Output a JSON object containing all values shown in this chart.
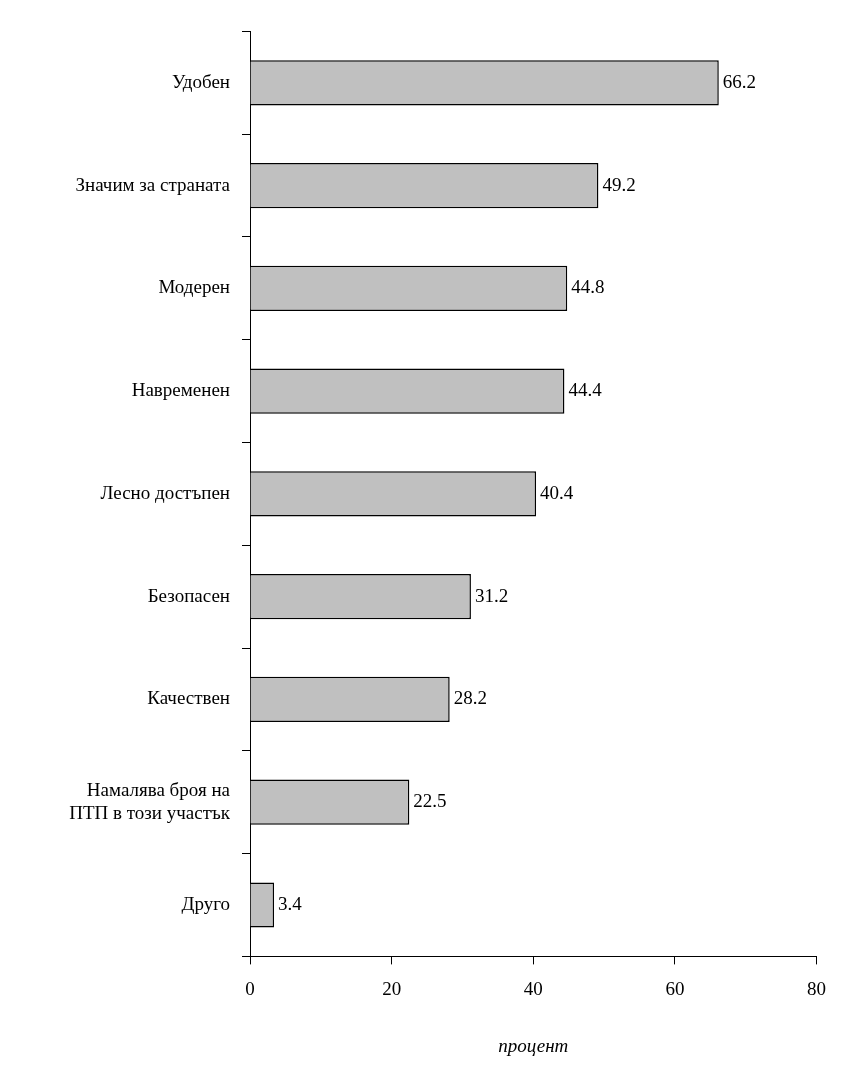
{
  "chart_data": {
    "type": "bar",
    "orientation": "horizontal",
    "xlabel": "процент",
    "categories": [
      "Удобен",
      "Значим за страната",
      "Модерен",
      "Навременен",
      "Лесно достъпен",
      "Безопасен",
      "Качествен",
      "Намалява броя на\nПТП в този участък",
      "Друго"
    ],
    "values": [
      66.2,
      49.2,
      44.8,
      44.4,
      40.4,
      31.2,
      28.2,
      22.5,
      3.4
    ],
    "color": "#c0c0c0",
    "xlim": [
      0,
      80
    ],
    "xticks": [
      0,
      20,
      40,
      60,
      80
    ],
    "grid": false,
    "legend": false,
    "data_labels": true
  }
}
